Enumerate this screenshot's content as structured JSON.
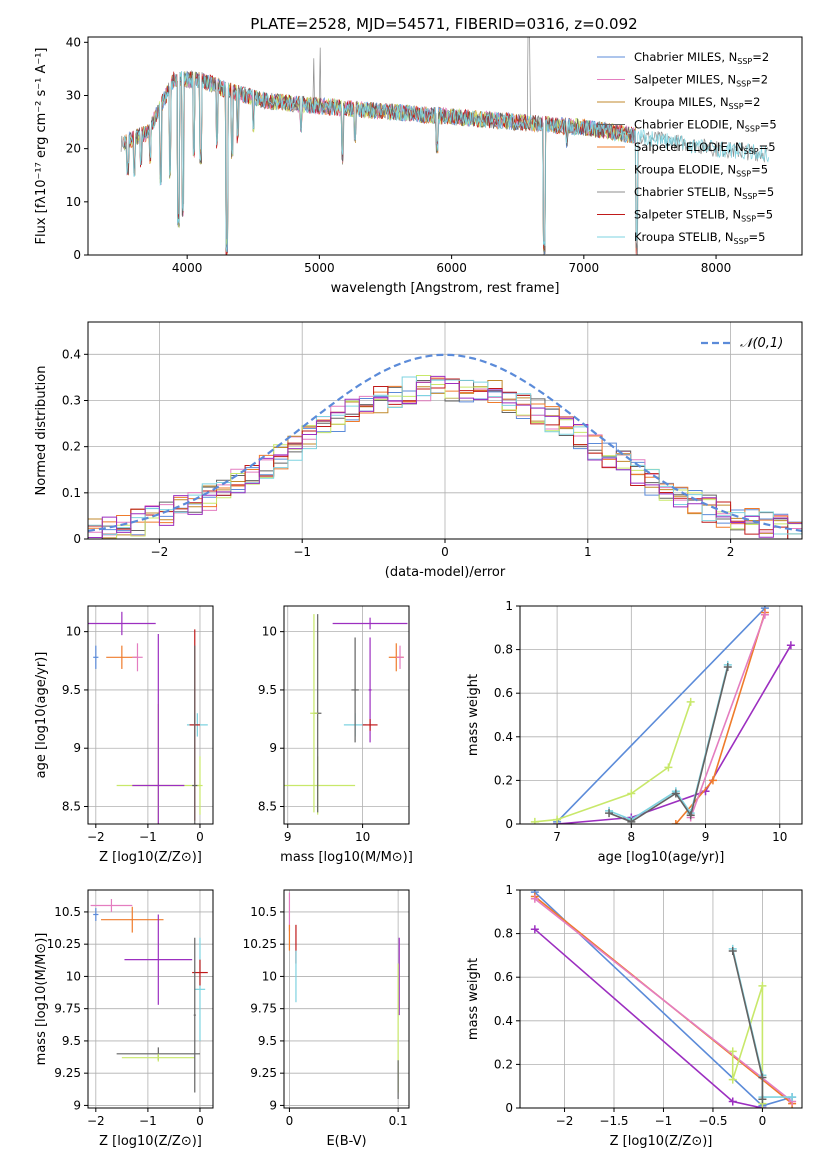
{
  "figure": {
    "title": "PLATE=2528, MJD=54571, FIBERID=0316, z=0.092"
  },
  "colors": [
    "#5B8BD9",
    "#E47DC0",
    "#C08A2C",
    "#636363",
    "#EF7B2B",
    "#C8E86A",
    "#8C8C8C",
    "#C01A1A",
    "#7ED3E0",
    "#9C2FC0"
  ],
  "chart_data": [
    {
      "id": "spectrum",
      "type": "line",
      "xlabel": "wavelength [Angstrom, rest frame]",
      "ylabel": "Flux [fλ10⁻¹⁷ erg cm⁻² s⁻¹ A⁻¹]",
      "xlim": [
        3250,
        8650
      ],
      "ylim": [
        0,
        41
      ],
      "xticks": [
        4000,
        5000,
        6000,
        7000,
        8000
      ],
      "yticks": [
        0,
        10,
        20,
        30,
        40
      ],
      "legend": [
        "Chabrier MILES, N_SSP=2",
        "Salpeter MILES, N_SSP=2",
        "Kroupa MILES, N_SSP=2",
        "Chabrier ELODIE, N_SSP=5",
        "Salpeter ELODIE, N_SSP=5",
        "Kroupa ELODIE, N_SSP=5",
        "Chabrier STELIB, N_SSP=5",
        "Salpeter STELIB, N_SSP=5",
        "Kroupa STELIB, N_SSP=5"
      ],
      "legend_colors": [
        "#5B8BD9",
        "#E47DC0",
        "#C08A2C",
        "#636363",
        "#EF7B2B",
        "#C8E86A",
        "#8C8C8C",
        "#C01A1A",
        "#7ED3E0"
      ],
      "legend_placement": "top-right",
      "continuum": [
        [
          3500,
          21
        ],
        [
          3700,
          23
        ],
        [
          3900,
          33
        ],
        [
          4100,
          33
        ],
        [
          4300,
          31
        ],
        [
          4600,
          29
        ],
        [
          5000,
          28
        ],
        [
          5500,
          27
        ],
        [
          6000,
          26
        ],
        [
          6500,
          25
        ],
        [
          7000,
          24
        ],
        [
          7500,
          22
        ],
        [
          8000,
          20
        ],
        [
          8400,
          19
        ]
      ],
      "absorption": [
        [
          3550,
          15
        ],
        [
          3600,
          14
        ],
        [
          3650,
          16
        ],
        [
          3720,
          17
        ],
        [
          3800,
          13
        ],
        [
          3870,
          14
        ],
        [
          3934,
          5
        ],
        [
          3968,
          7
        ],
        [
          4050,
          18
        ],
        [
          4102,
          17
        ],
        [
          4227,
          20
        ],
        [
          4300,
          0
        ],
        [
          4340,
          18
        ],
        [
          4383,
          21
        ],
        [
          4500,
          23
        ],
        [
          4861,
          23
        ],
        [
          5175,
          17
        ],
        [
          5270,
          21
        ],
        [
          5890,
          19
        ],
        [
          6563,
          24
        ],
        [
          6700,
          0
        ],
        [
          6870,
          20
        ],
        [
          7400,
          0
        ]
      ],
      "emission": [
        [
          4959,
          37
        ],
        [
          5007,
          39
        ],
        [
          6580,
          41
        ],
        [
          6590,
          41
        ]
      ]
    },
    {
      "id": "residuals",
      "type": "histogram",
      "xlabel": "(data-model)/error",
      "ylabel": "Normed distribution",
      "xlim": [
        -2.5,
        2.5
      ],
      "ylim": [
        0,
        0.47
      ],
      "xticks": [
        -2,
        -1,
        0,
        1,
        2
      ],
      "yticks": [
        0.0,
        0.1,
        0.2,
        0.3,
        0.4
      ],
      "grid": true,
      "legend": [
        "𝒩(0,1)"
      ],
      "legend_placement": "top-right",
      "reference_curve": "normal(0,1)",
      "bins": 50
    },
    {
      "id": "age-vs-Z",
      "type": "errorbar",
      "xlabel": "Z [log10(Z/Z⊙)]",
      "ylabel": "age  [log10(age/yr)]",
      "xlim": [
        -2.15,
        0.25
      ],
      "ylim": [
        8.35,
        10.22
      ],
      "xticks": [
        -2,
        -1,
        0
      ],
      "yticks": [
        8.5,
        9.0,
        9.5,
        10.0
      ],
      "grid": true,
      "points": [
        {
          "x": -1.5,
          "y": 10.07,
          "xe": 0.65,
          "ye": 0.1,
          "c": 9
        },
        {
          "x": -1.5,
          "y": 9.78,
          "xe": 0.3,
          "ye": 0.1,
          "c": 4
        },
        {
          "x": -1.2,
          "y": 9.78,
          "xe": 0.1,
          "ye": 0.12,
          "c": 1
        },
        {
          "x": -2.0,
          "y": 9.78,
          "xe": 0.05,
          "ye": 0.1,
          "c": 0
        },
        {
          "x": -0.8,
          "y": 8.68,
          "xe": 0.8,
          "ye": 0.7,
          "c": 5
        },
        {
          "x": -0.8,
          "y": 8.68,
          "xe": 0.5,
          "ye": 1.3,
          "c": 9
        },
        {
          "x": -0.05,
          "y": 9.2,
          "xe": 0.2,
          "ye": 0.1,
          "c": 8
        },
        {
          "x": -0.1,
          "y": 9.2,
          "xe": 0.1,
          "ye": 0.82,
          "c": 7
        },
        {
          "x": 0.0,
          "y": 8.68,
          "xe": 0.05,
          "ye": 0.25,
          "c": 5
        },
        {
          "x": -0.1,
          "y": 8.68,
          "xe": 0.05,
          "ye": 1.2,
          "c": 3
        }
      ]
    },
    {
      "id": "age-vs-mass",
      "type": "errorbar",
      "xlabel": "mass [log10(M/M⊙)]",
      "ylabel": "",
      "xlim": [
        8.95,
        10.62
      ],
      "ylim": [
        8.35,
        10.22
      ],
      "xticks": [
        9,
        10
      ],
      "yticks": [
        8.5,
        9.0,
        9.5,
        10.0
      ],
      "grid": true,
      "points": [
        {
          "x": 10.1,
          "y": 10.07,
          "xe": 0.5,
          "ye": 0.05,
          "c": 9
        },
        {
          "x": 10.45,
          "y": 9.78,
          "xe": 0.1,
          "ye": 0.12,
          "c": 4
        },
        {
          "x": 10.5,
          "y": 9.78,
          "xe": 0.05,
          "ye": 0.1,
          "c": 1
        },
        {
          "x": 9.4,
          "y": 8.68,
          "xe": 0.5,
          "ye": 0.25,
          "c": 5
        },
        {
          "x": 9.4,
          "y": 9.3,
          "xe": 0.05,
          "ye": 0.85,
          "c": 3
        },
        {
          "x": 9.35,
          "y": 9.3,
          "xe": 0.05,
          "ye": 0.85,
          "c": 5
        },
        {
          "x": 9.9,
          "y": 9.2,
          "xe": 0.15,
          "ye": 0.1,
          "c": 8
        },
        {
          "x": 9.9,
          "y": 9.5,
          "xe": 0.05,
          "ye": 0.45,
          "c": 3
        },
        {
          "x": 10.1,
          "y": 9.5,
          "xe": 0.02,
          "ye": 0.45,
          "c": 9
        },
        {
          "x": 10.1,
          "y": 9.2,
          "xe": 0.1,
          "ye": 0.05,
          "c": 7
        }
      ]
    },
    {
      "id": "weight-vs-age",
      "type": "line",
      "xlabel": "age  [log10(age/yr)]",
      "ylabel": "mass weight",
      "xlim": [
        6.5,
        10.3
      ],
      "ylim": [
        0,
        1
      ],
      "xticks": [
        7,
        8,
        9,
        10
      ],
      "yticks": [
        0.0,
        0.2,
        0.4,
        0.6,
        0.8,
        1.0
      ],
      "grid": true,
      "series": [
        {
          "c": 0,
          "x": [
            7.0,
            9.8
          ],
          "y": [
            0.01,
            0.99
          ]
        },
        {
          "c": 9,
          "x": [
            7.0,
            8.0,
            9.0,
            10.15
          ],
          "y": [
            0.0,
            0.03,
            0.15,
            0.82
          ]
        },
        {
          "c": 4,
          "x": [
            8.6,
            9.1,
            9.8
          ],
          "y": [
            0.0,
            0.2,
            0.97
          ]
        },
        {
          "c": 1,
          "x": [
            8.8,
            9.8
          ],
          "y": [
            0.03,
            0.96
          ]
        },
        {
          "c": 5,
          "x": [
            6.7,
            7.0,
            8.0,
            8.5,
            8.8
          ],
          "y": [
            0.01,
            0.02,
            0.14,
            0.26,
            0.56
          ]
        },
        {
          "c": 8,
          "x": [
            7.7,
            8.0,
            8.6,
            8.8,
            9.3
          ],
          "y": [
            0.06,
            0.02,
            0.15,
            0.05,
            0.73
          ]
        },
        {
          "c": 3,
          "x": [
            7.7,
            8.0,
            8.6,
            8.8,
            9.3
          ],
          "y": [
            0.05,
            0.01,
            0.14,
            0.04,
            0.72
          ]
        }
      ]
    },
    {
      "id": "mass-vs-Z",
      "type": "errorbar",
      "xlabel": "Z [log10(Z/Z⊙)]",
      "ylabel": "mass [log10(M/M⊙)]",
      "xlim": [
        -2.15,
        0.25
      ],
      "ylim": [
        8.98,
        10.67
      ],
      "xticks": [
        -2,
        -1,
        0
      ],
      "yticks": [
        9.0,
        9.25,
        9.5,
        9.75,
        10.0,
        10.25,
        10.5
      ],
      "grid": true,
      "points": [
        {
          "x": -1.7,
          "y": 10.55,
          "xe": 0.4,
          "ye": 0.05,
          "c": 1
        },
        {
          "x": -1.3,
          "y": 10.44,
          "xe": 0.6,
          "ye": 0.1,
          "c": 4
        },
        {
          "x": -2.0,
          "y": 10.48,
          "xe": 0.05,
          "ye": 0.05,
          "c": 0
        },
        {
          "x": -0.8,
          "y": 10.13,
          "xe": 0.65,
          "ye": 0.35,
          "c": 9
        },
        {
          "x": -0.8,
          "y": 9.4,
          "xe": 0.8,
          "ye": 0.05,
          "c": 3
        },
        {
          "x": -0.8,
          "y": 9.37,
          "xe": 0.7,
          "ye": 0.03,
          "c": 5
        },
        {
          "x": 0.0,
          "y": 9.9,
          "xe": 0.1,
          "ye": 0.4,
          "c": 8
        },
        {
          "x": 0.0,
          "y": 10.03,
          "xe": 0.15,
          "ye": 0.1,
          "c": 7
        },
        {
          "x": -0.1,
          "y": 9.7,
          "xe": 0.02,
          "ye": 0.6,
          "c": 3
        }
      ]
    },
    {
      "id": "mass-vs-EBV",
      "type": "errorbar",
      "xlabel": "E(B-V)",
      "ylabel": "",
      "xlim": [
        -0.005,
        0.11
      ],
      "ylim": [
        8.98,
        10.67
      ],
      "xticks": [
        0.0,
        0.1
      ],
      "yticks": [
        9.0,
        9.25,
        9.5,
        9.75,
        10.0,
        10.25,
        10.5
      ],
      "grid": true,
      "points": [
        {
          "x": 0.0,
          "y": 10.5,
          "xe": 0.0,
          "ye": 0.15,
          "c": 1
        },
        {
          "x": 0.0,
          "y": 10.3,
          "xe": 0.0,
          "ye": 0.1,
          "c": 4
        },
        {
          "x": 0.006,
          "y": 10.25,
          "xe": 0.0,
          "ye": 0.15,
          "c": 7
        },
        {
          "x": 0.006,
          "y": 10.0,
          "xe": 0.0,
          "ye": 0.2,
          "c": 8
        },
        {
          "x": 0.101,
          "y": 10.0,
          "xe": 0.0,
          "ye": 0.3,
          "c": 9
        },
        {
          "x": 0.1,
          "y": 9.6,
          "xe": 0.0,
          "ye": 0.5,
          "c": 5
        },
        {
          "x": 0.1,
          "y": 9.2,
          "xe": 0.0,
          "ye": 0.15,
          "c": 3
        }
      ]
    },
    {
      "id": "weight-vs-Z",
      "type": "line",
      "xlabel": "Z [log10(Z/Z⊙)]",
      "ylabel": "mass weight",
      "xlim": [
        -2.45,
        0.4
      ],
      "ylim": [
        0,
        1
      ],
      "xticks": [
        -2.0,
        -1.5,
        -1.0,
        -0.5,
        0.0
      ],
      "yticks": [
        0.0,
        0.2,
        0.4,
        0.6,
        0.8,
        1.0
      ],
      "grid": true,
      "series": [
        {
          "c": 0,
          "x": [
            -2.3,
            0.0,
            0.3
          ],
          "y": [
            0.99,
            0.01,
            0.05
          ]
        },
        {
          "c": 9,
          "x": [
            -2.3,
            -0.3,
            0.0
          ],
          "y": [
            0.82,
            0.03,
            0.0
          ]
        },
        {
          "c": 4,
          "x": [
            -2.3,
            0.3
          ],
          "y": [
            0.97,
            0.02
          ]
        },
        {
          "c": 1,
          "x": [
            -2.3,
            0.3
          ],
          "y": [
            0.96,
            0.03
          ]
        },
        {
          "c": 5,
          "x": [
            -0.3,
            -0.3,
            0.0,
            0.0
          ],
          "y": [
            0.26,
            0.13,
            0.56,
            0.02
          ]
        },
        {
          "c": 8,
          "x": [
            -0.3,
            0.0,
            0.0,
            0.3
          ],
          "y": [
            0.73,
            0.15,
            0.05,
            0.05
          ]
        },
        {
          "c": 3,
          "x": [
            -0.3,
            0.0,
            0.0
          ],
          "y": [
            0.72,
            0.14,
            0.04
          ]
        }
      ]
    }
  ]
}
